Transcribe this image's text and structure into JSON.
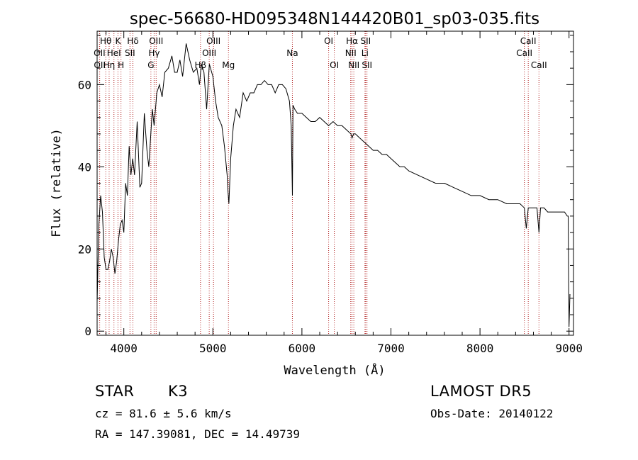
{
  "chart_data": {
    "type": "line",
    "title": "spec-56680-HD095348N144420B01_sp03-035.fits",
    "xlabel": "Wavelength (Å)",
    "ylabel": "Flux (relative)",
    "xlim": [
      3700,
      9050
    ],
    "ylim": [
      -1,
      73
    ],
    "xticks": [
      4000,
      5000,
      6000,
      7000,
      8000,
      9000
    ],
    "yticks": [
      0,
      20,
      40,
      60
    ],
    "grid": false,
    "line_color": "#000000",
    "marker_color": "#b22222",
    "series": [
      {
        "x": [
          3700,
          3720,
          3740,
          3760,
          3780,
          3800,
          3820,
          3840,
          3860,
          3880,
          3900,
          3920,
          3940,
          3960,
          3980,
          4000,
          4020,
          4040,
          4060,
          4080,
          4100,
          4120,
          4150,
          4180,
          4200,
          4230,
          4260,
          4280,
          4300,
          4320,
          4340,
          4370,
          4400,
          4430,
          4460,
          4500,
          4540,
          4570,
          4600,
          4630,
          4660,
          4700,
          4740,
          4780,
          4820,
          4850,
          4870,
          4900,
          4930,
          4960,
          5000,
          5030,
          5060,
          5100,
          5130,
          5160,
          5170,
          5180,
          5200,
          5230,
          5260,
          5300,
          5340,
          5380,
          5420,
          5460,
          5500,
          5540,
          5580,
          5620,
          5660,
          5700,
          5740,
          5780,
          5820,
          5860,
          5880,
          5893,
          5900,
          5920,
          5950,
          6000,
          6050,
          6100,
          6150,
          6200,
          6250,
          6300,
          6350,
          6400,
          6450,
          6500,
          6550,
          6563,
          6580,
          6600,
          6650,
          6700,
          6750,
          6800,
          6850,
          6900,
          6950,
          7000,
          7050,
          7100,
          7150,
          7200,
          7300,
          7400,
          7500,
          7600,
          7700,
          7800,
          7900,
          8000,
          8100,
          8200,
          8300,
          8400,
          8450,
          8498,
          8520,
          8542,
          8560,
          8600,
          8640,
          8662,
          8680,
          8720,
          8760,
          8800,
          8850,
          8900,
          8950,
          8980,
          8990,
          9000,
          9010
        ],
        "values": [
          7,
          26,
          33,
          29,
          18,
          15,
          15,
          17,
          20,
          18,
          14,
          17,
          22,
          26,
          27,
          24,
          36,
          33,
          45,
          38,
          42,
          38,
          51,
          35,
          36,
          53,
          44,
          40,
          47,
          54,
          50,
          58,
          60,
          57,
          63,
          64,
          67,
          63,
          63,
          66,
          62,
          70,
          66,
          63,
          64,
          60,
          65,
          63,
          54,
          65,
          62,
          56,
          52,
          50,
          45,
          38,
          34,
          31,
          42,
          50,
          54,
          52,
          58,
          56,
          58,
          58,
          60,
          60,
          61,
          60,
          60,
          58,
          60,
          60,
          59,
          56,
          50,
          33,
          55,
          54,
          53,
          53,
          52,
          51,
          51,
          52,
          51,
          50,
          51,
          50,
          50,
          49,
          48,
          47,
          48,
          48,
          47,
          46,
          45,
          44,
          44,
          43,
          43,
          42,
          41,
          40,
          40,
          39,
          38,
          37,
          36,
          36,
          35,
          34,
          33,
          33,
          32,
          32,
          31,
          31,
          31,
          30,
          25,
          30,
          30,
          30,
          30,
          24,
          30,
          30,
          29,
          29,
          29,
          29,
          29,
          28,
          28,
          1,
          9
        ]
      }
    ],
    "lines": [
      {
        "name": "Hθ",
        "x": 3797,
        "row": 1
      },
      {
        "name": "OII",
        "x": 3727,
        "row": 2
      },
      {
        "name": "OII",
        "x": 3729,
        "row": 3
      },
      {
        "name": "Hη",
        "x": 3835,
        "row": 3
      },
      {
        "name": "K",
        "x": 3934,
        "row": 1
      },
      {
        "name": "HeI",
        "x": 3889,
        "row": 2
      },
      {
        "name": "H",
        "x": 3968,
        "row": 3
      },
      {
        "name": "Hδ",
        "x": 4102,
        "row": 1
      },
      {
        "name": "SII",
        "x": 4069,
        "row": 2
      },
      {
        "name": "OIII",
        "x": 4363,
        "row": 1
      },
      {
        "name": "Hγ",
        "x": 4340,
        "row": 2
      },
      {
        "name": "G",
        "x": 4304,
        "row": 3
      },
      {
        "name": "Hβ",
        "x": 4861,
        "row": 3
      },
      {
        "name": "OIII",
        "x": 5007,
        "row": 1
      },
      {
        "name": "OIII",
        "x": 4959,
        "row": 2
      },
      {
        "name": "Mg",
        "x": 5175,
        "row": 3
      },
      {
        "name": "Na",
        "x": 5893,
        "row": 2
      },
      {
        "name": "OI",
        "x": 6300,
        "row": 1
      },
      {
        "name": "OI",
        "x": 6364,
        "row": 3
      },
      {
        "name": "Hα",
        "x": 6563,
        "row": 1
      },
      {
        "name": "NII",
        "x": 6548,
        "row": 2
      },
      {
        "name": "NII",
        "x": 6583,
        "row": 3
      },
      {
        "name": "SII",
        "x": 6716,
        "row": 1
      },
      {
        "name": "Li",
        "x": 6708,
        "row": 2
      },
      {
        "name": "SII",
        "x": 6731,
        "row": 3
      },
      {
        "name": "CaII",
        "x": 8542,
        "row": 1
      },
      {
        "name": "CaII",
        "x": 8498,
        "row": 2
      },
      {
        "name": "CaII",
        "x": 8662,
        "row": 3
      }
    ]
  },
  "info": {
    "object_type": "STAR",
    "subclass": "K3",
    "survey": "LAMOST DR5",
    "cz": "cz = 81.6 ± 5.6 km/s",
    "obs_date": "Obs-Date: 20140122",
    "coords": "RA = 147.39081, DEC =  14.49739"
  }
}
